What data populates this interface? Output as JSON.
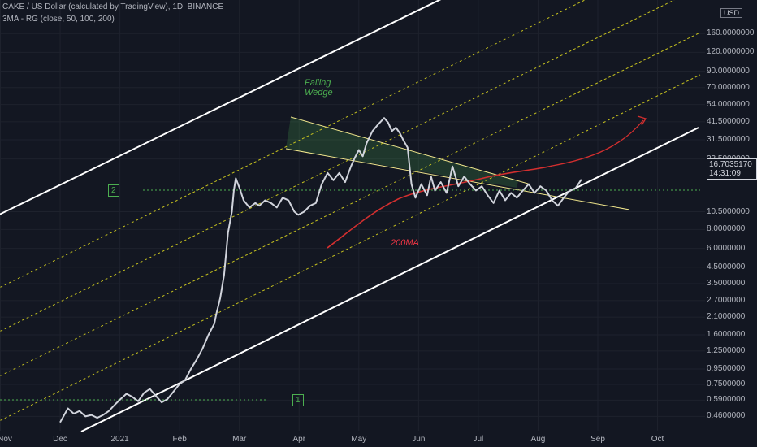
{
  "header": {
    "title": "CAKE / US Dollar (calculated by TradingView), 1D, BINANCE",
    "indicator": "3MA - RG (close, 50, 100, 200)"
  },
  "annotations": {
    "falling": "Falling",
    "wedge": "Wedge",
    "ma200": "200MA",
    "box1": "1",
    "box2": "2"
  },
  "price_axis": {
    "currency": "USD",
    "current_price": "16.7035170",
    "countdown": "14:31:09"
  },
  "colors": {
    "background": "#131722",
    "price_line": "#d1d4dc",
    "channel": "#ffffff",
    "guide_lines": "#c6c21f",
    "wedge": "#4caf50",
    "ma200": "#d32f2f",
    "level_lines": "#4caf50"
  },
  "chart_data": {
    "type": "line",
    "title": "CAKE / US Dollar (calculated by TradingView), 1D, BINANCE",
    "scale": "log",
    "ylim": [
      0.4,
      170
    ],
    "y_ticks": [
      {
        "value": 160,
        "label": "160.0000000"
      },
      {
        "value": 120,
        "label": "120.0000000"
      },
      {
        "value": 90,
        "label": "90.0000000"
      },
      {
        "value": 70,
        "label": "70.0000000"
      },
      {
        "value": 54,
        "label": "54.0000000"
      },
      {
        "value": 41.5,
        "label": "41.5000000"
      },
      {
        "value": 31.5,
        "label": "31.5000000"
      },
      {
        "value": 23.5,
        "label": "23.5000000"
      },
      {
        "value": 10.5,
        "label": "10.5000000"
      },
      {
        "value": 8,
        "label": "8.0000000"
      },
      {
        "value": 6,
        "label": "6.0000000"
      },
      {
        "value": 4.5,
        "label": "4.5000000"
      },
      {
        "value": 3.5,
        "label": "3.5000000"
      },
      {
        "value": 2.7,
        "label": "2.7000000"
      },
      {
        "value": 2.1,
        "label": "2.1000000"
      },
      {
        "value": 1.6,
        "label": "1.6000000"
      },
      {
        "value": 1.25,
        "label": "1.2500000"
      },
      {
        "value": 0.95,
        "label": "0.9500000"
      },
      {
        "value": 0.75,
        "label": "0.7500000"
      },
      {
        "value": 0.59,
        "label": "0.5900000"
      },
      {
        "value": 0.46,
        "label": "0.4600000"
      }
    ],
    "x_ticks": [
      "Nov",
      "Dec",
      "2021",
      "Feb",
      "Mar",
      "Apr",
      "May",
      "Jun",
      "Jul",
      "Aug",
      "Sep",
      "Oct"
    ],
    "series": [
      {
        "x": [
          0,
          4,
          7,
          10,
          13,
          16,
          19,
          22,
          25,
          28,
          31,
          34,
          37,
          40,
          43,
          46,
          49,
          52,
          55,
          58,
          61,
          64,
          67,
          70,
          73,
          76,
          79,
          80,
          82,
          84,
          85,
          86,
          88,
          89,
          90,
          92,
          94,
          97,
          100,
          102,
          105,
          108,
          111,
          114,
          117,
          120,
          122,
          125,
          128,
          131,
          134,
          137,
          140,
          143,
          146,
          149,
          151,
          153,
          155,
          157,
          160,
          163,
          166,
          168,
          170,
          172,
          174,
          176,
          178,
          180,
          182,
          185,
          188,
          190,
          192,
          195,
          198,
          201,
          204,
          207,
          210,
          213,
          216,
          219,
          222,
          225,
          228,
          231,
          234,
          237,
          240,
          243,
          246,
          249,
          252,
          255,
          258,
          261,
          264,
          267
        ],
        "values": [
          0.42,
          0.52,
          0.48,
          0.5,
          0.46,
          0.47,
          0.45,
          0.47,
          0.5,
          0.55,
          0.6,
          0.65,
          0.62,
          0.58,
          0.66,
          0.7,
          0.63,
          0.57,
          0.6,
          0.67,
          0.75,
          0.8,
          0.95,
          1.1,
          1.3,
          1.6,
          1.9,
          2.2,
          2.8,
          4.0,
          5.5,
          7.6,
          10.5,
          14.5,
          17.5,
          15.0,
          12.5,
          11.2,
          12.0,
          11.5,
          12.5,
          12.0,
          11.2,
          13.0,
          12.5,
          10.5,
          10.0,
          10.5,
          11.5,
          12.0,
          16.0,
          19.0,
          17.0,
          19.0,
          16.5,
          21.0,
          24.0,
          27.0,
          24.5,
          30.0,
          36.0,
          40.0,
          44.0,
          41.0,
          36.0,
          38.0,
          35.0,
          31.0,
          28.0,
          16.0,
          13.0,
          16.0,
          13.5,
          18.0,
          14.5,
          16.5,
          14.0,
          21.0,
          15.5,
          18.0,
          16.0,
          14.5,
          15.5,
          13.5,
          12.0,
          14.5,
          12.5,
          14.0,
          13.0,
          14.5,
          16.0,
          14.0,
          15.5,
          14.5,
          12.5,
          11.5,
          13.0,
          14.5,
          15.0,
          17.2
        ]
      }
    ]
  }
}
